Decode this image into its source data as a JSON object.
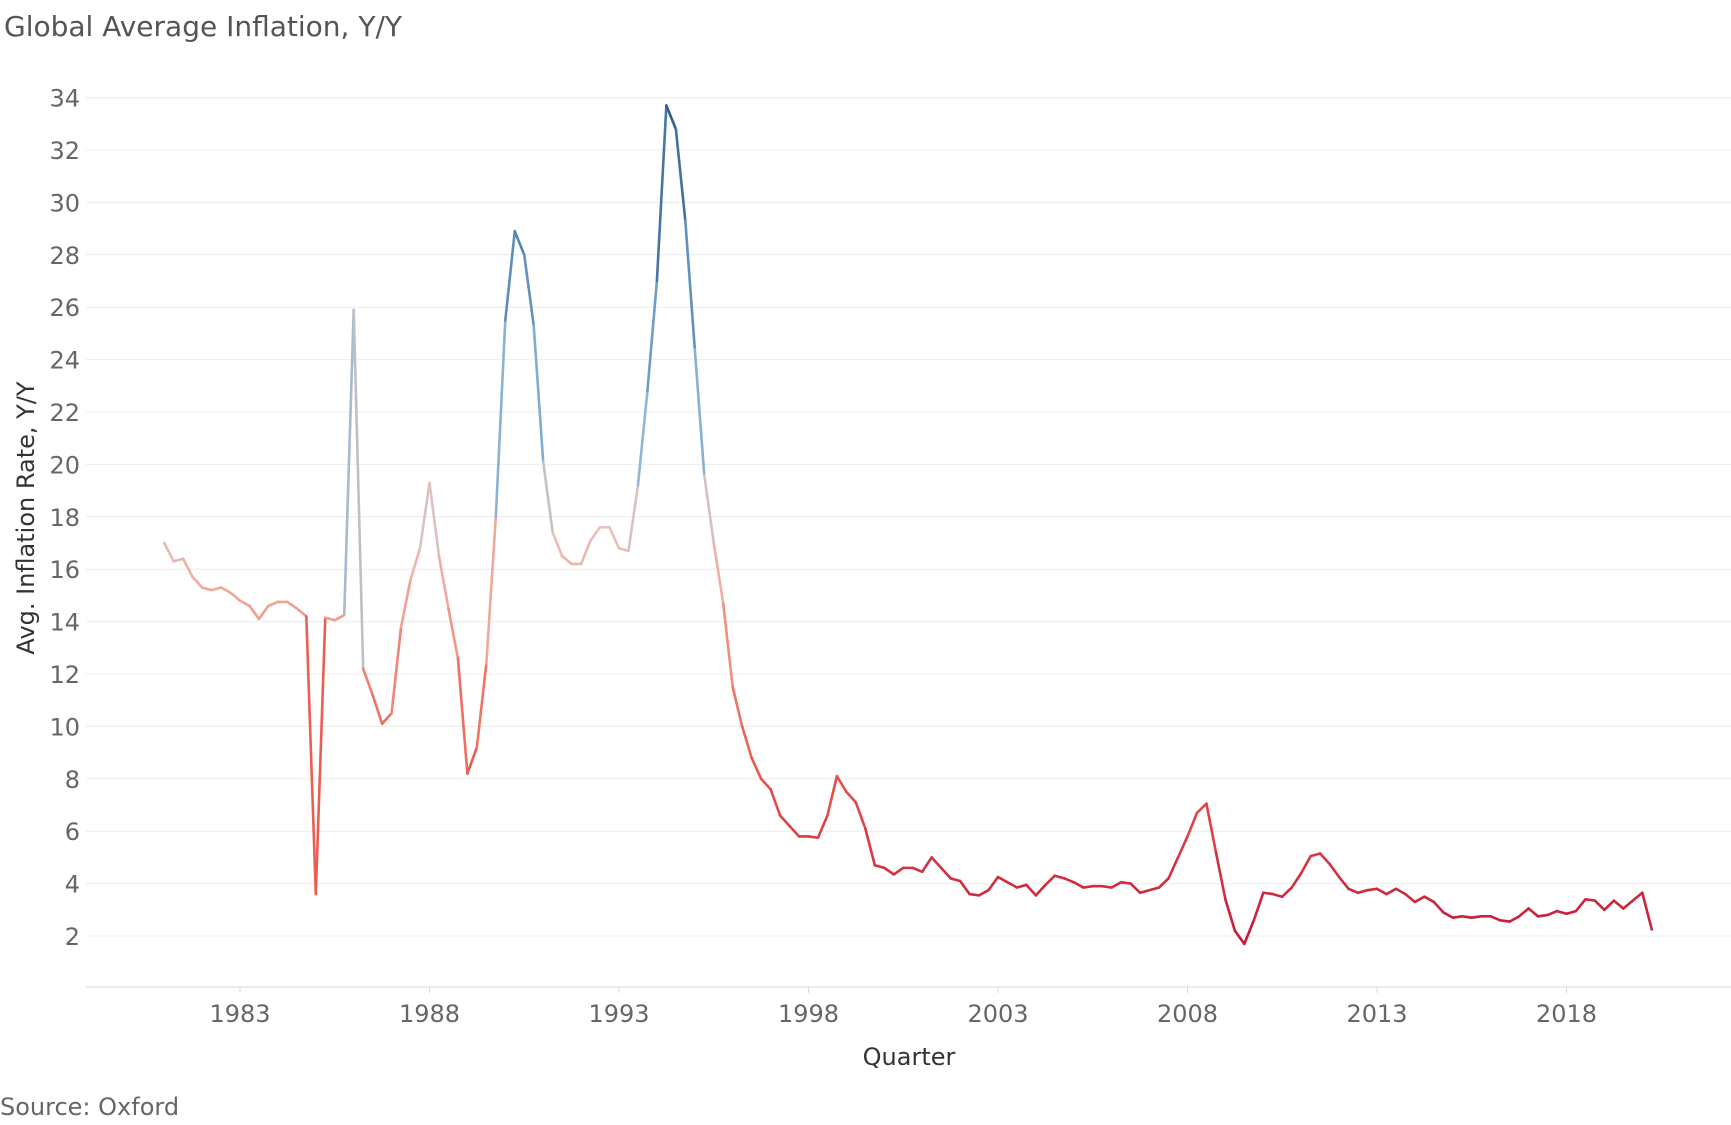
{
  "title": "Global Average Inflation, Y/Y",
  "source": "Source: Oxford",
  "chart_data": {
    "type": "line",
    "title": "Global Average Inflation, Y/Y",
    "xlabel": "Quarter",
    "ylabel": "Avg. Inflation Rate, Y/Y",
    "xlim": [
      1981.2,
      2023.5
    ],
    "ylim": [
      0,
      35
    ],
    "x_ticks": [
      1983,
      1988,
      1993,
      1998,
      2003,
      2008,
      2013,
      2018
    ],
    "y_ticks": [
      2,
      4,
      6,
      8,
      10,
      12,
      14,
      16,
      18,
      20,
      22,
      24,
      26,
      28,
      30,
      32,
      34
    ],
    "grid": "horizontal",
    "color_scale": {
      "low": "#c2173a",
      "mid": "#f0a690",
      "high": "#2f5b8f"
    },
    "series": [
      {
        "x": [
          1981.0,
          1981.25,
          1981.5,
          1981.75,
          1982.0,
          1982.25,
          1982.5,
          1982.75,
          1983.0,
          1983.25,
          1983.5,
          1983.75,
          1984.0,
          1984.25,
          1984.5,
          1984.75,
          1985.0,
          1985.25,
          1985.5,
          1985.75,
          1986.0,
          1986.25,
          1986.5,
          1986.75,
          1987.0,
          1987.25,
          1987.5,
          1987.75,
          1988.0,
          1988.25,
          1988.5,
          1988.75,
          1989.0,
          1989.25,
          1989.5,
          1989.75,
          1990.0,
          1990.25,
          1990.5,
          1990.75,
          1991.0,
          1991.25,
          1991.5,
          1991.75,
          1992.0,
          1992.25,
          1992.5,
          1992.75,
          1993.0,
          1993.25,
          1993.5,
          1993.75,
          1994.0,
          1994.25,
          1994.5,
          1994.75,
          1995.0,
          1995.25,
          1995.5,
          1995.75,
          1996.0,
          1996.25,
          1996.5,
          1996.75,
          1997.0,
          1997.25,
          1997.5,
          1997.75,
          1998.0,
          1998.25,
          1998.5,
          1998.75,
          1999.0,
          1999.25,
          1999.5,
          1999.75,
          2000.0,
          2000.25,
          2000.5,
          2000.75,
          2001.0,
          2001.25,
          2001.5,
          2001.75,
          2002.0,
          2002.25,
          2002.5,
          2002.75,
          2003.0,
          2003.25,
          2003.5,
          2003.75,
          2004.0,
          2004.25,
          2004.5,
          2004.75,
          2005.0,
          2005.25,
          2005.5,
          2005.75,
          2006.0,
          2006.25,
          2006.5,
          2006.75,
          2007.0,
          2007.25,
          2007.5,
          2007.75,
          2008.0,
          2008.25,
          2008.5,
          2008.75,
          2009.0,
          2009.25,
          2009.5,
          2009.75,
          2010.0,
          2010.25,
          2010.5,
          2010.75,
          2011.0,
          2011.25,
          2011.5,
          2011.75,
          2012.0,
          2012.25,
          2012.5,
          2012.75,
          2013.0,
          2013.25,
          2013.5,
          2013.75,
          2014.0,
          2014.25,
          2014.5,
          2014.75,
          2015.0,
          2015.25,
          2015.5,
          2015.75,
          2016.0,
          2016.25,
          2016.5,
          2016.75,
          2017.0,
          2017.25,
          2017.5,
          2017.75,
          2018.0,
          2018.25,
          2018.5,
          2018.75,
          2019.0,
          2019.25,
          2019.5,
          2019.75,
          2020.0,
          2020.25
        ],
        "y": [
          17.0,
          16.3,
          16.4,
          15.7,
          15.3,
          15.2,
          15.3,
          15.1,
          14.8,
          14.6,
          14.1,
          14.6,
          14.75,
          14.75,
          14.5,
          14.2,
          3.6,
          14.15,
          14.05,
          14.25,
          25.9,
          12.2,
          11.2,
          10.1,
          10.5,
          13.8,
          15.6,
          16.8,
          19.3,
          16.5,
          14.5,
          12.6,
          8.2,
          9.2,
          12.4,
          18.0,
          25.5,
          28.9,
          28.0,
          25.3,
          20.1,
          17.4,
          16.5,
          16.2,
          16.2,
          17.1,
          17.6,
          17.6,
          16.8,
          16.7,
          19.2,
          22.8,
          27.0,
          33.7,
          32.8,
          29.3,
          24.4,
          19.6,
          17.0,
          14.7,
          11.5,
          10.0,
          8.8,
          8.0,
          7.6,
          6.6,
          6.2,
          5.8,
          5.8,
          5.75,
          6.6,
          8.1,
          7.5,
          7.1,
          6.1,
          4.7,
          4.6,
          4.35,
          4.6,
          4.6,
          4.45,
          5.0,
          4.6,
          4.2,
          4.1,
          3.6,
          3.55,
          3.75,
          4.25,
          4.05,
          3.85,
          3.95,
          3.55,
          3.95,
          4.3,
          4.2,
          4.05,
          3.85,
          3.9,
          3.9,
          3.85,
          4.05,
          4.0,
          3.65,
          3.75,
          3.85,
          4.2,
          5.0,
          5.8,
          6.7,
          7.05,
          5.2,
          3.4,
          2.2,
          1.7,
          2.6,
          3.65,
          3.6,
          3.5,
          3.85,
          4.4,
          5.05,
          5.15,
          4.75,
          4.25,
          3.8,
          3.65,
          3.75,
          3.8,
          3.6,
          3.8,
          3.6,
          3.3,
          3.5,
          3.3,
          2.9,
          2.7,
          2.75,
          2.7,
          2.75,
          2.75,
          2.6,
          2.55,
          2.75,
          3.05,
          2.75,
          2.8,
          2.95,
          2.85,
          2.95,
          3.4,
          3.35,
          3.0,
          3.35,
          3.05,
          3.35,
          3.65,
          2.25
        ]
      }
    ]
  }
}
